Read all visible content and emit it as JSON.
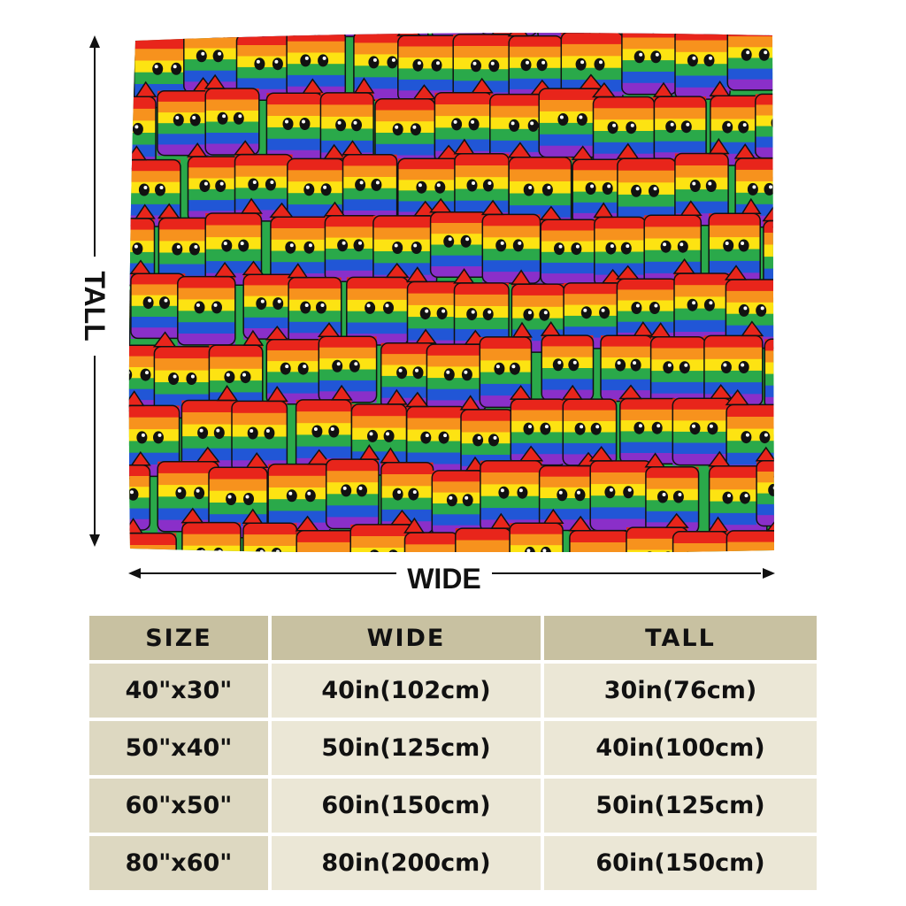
{
  "dimensions": {
    "tall_label": "TALL",
    "wide_label": "WIDE"
  },
  "blanket": {
    "pattern": "rainbow-stripe cartoon creatures",
    "stripe_colors": [
      "#e8251b",
      "#f7921d",
      "#fde312",
      "#2aa94a",
      "#2156d6",
      "#8a2fc9"
    ]
  },
  "table": {
    "headers": [
      "SIZE",
      "WIDE",
      "TALL"
    ],
    "rows": [
      [
        "40\"x30\"",
        "40in(102cm)",
        "30in(76cm)"
      ],
      [
        "50\"x40\"",
        "50in(125cm)",
        "40in(100cm)"
      ],
      [
        "60\"x50\"",
        "60in(150cm)",
        "50in(125cm)"
      ],
      [
        "80\"x60\"",
        "80in(200cm)",
        "60in(150cm)"
      ]
    ]
  }
}
